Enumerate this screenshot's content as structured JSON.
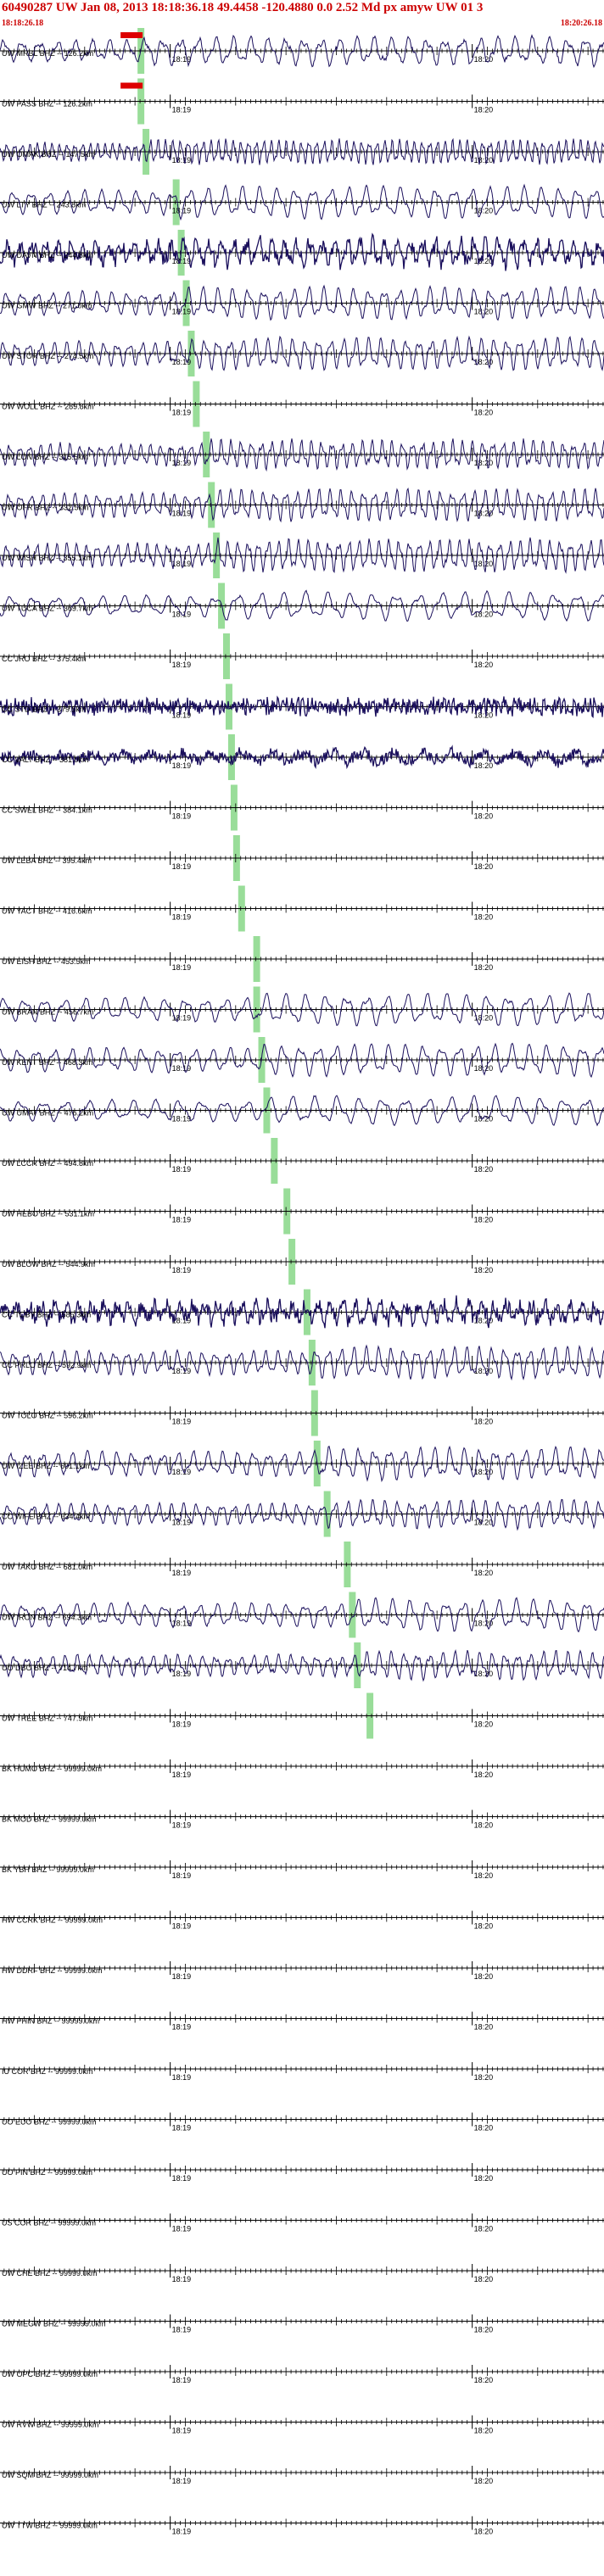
{
  "header": {
    "title": "60490287 UW Jan 08, 2013 18:18:36.18   49.4458 -120.4880  0.0 2.52 Md px amyw UW 01   3",
    "start_time": "18:18:26.18",
    "end_time": "18:20:26.18"
  },
  "colors": {
    "trace": "#1a0f5c",
    "pick": "#99dd99",
    "header_text": "#cc0000",
    "axis": "#000000"
  },
  "chart_data": {
    "type": "line",
    "title": "60490287 UW Jan 08, 2013 18:18:36.18   49.4458 -120.4880  0.0 2.52 Md px amyw UW 01   3",
    "time_window": [
      "18:18:26.18",
      "18:20:26.18"
    ],
    "tick_labels": [
      "18:19",
      "18:20"
    ],
    "tick_seconds": [
      33.82,
      93.82
    ],
    "window_seconds": 120,
    "origin_seconds": 10,
    "traces": [
      {
        "label": "UW MRBL BHZ -- 126.2km",
        "distance_km": 126.2,
        "pick_s": 28.0,
        "amp": 0.8,
        "period": 3.5,
        "noise": 0.1,
        "has_signal": true,
        "clipped": true
      },
      {
        "label": "UW PASS BHZ -- 126.2km",
        "distance_km": 126.2,
        "pick_s": 28.0,
        "amp": 0.15,
        "period": 3.0,
        "noise": 0.05,
        "has_signal": false,
        "clipped": true
      },
      {
        "label": "UW OMAK BHZ -- 147.5km",
        "distance_km": 147.5,
        "pick_s": 29.0,
        "amp": 0.7,
        "period": 1.5,
        "noise": 0.05,
        "has_signal": true,
        "clipped": false
      },
      {
        "label": "UW LTY BHZ -- 243.8km",
        "distance_km": 243.8,
        "pick_s": 35.0,
        "amp": 0.9,
        "period": 3.5,
        "noise": 0.05,
        "has_signal": true,
        "clipped": false
      },
      {
        "label": "UW DAVN BHZ -- 244.8km",
        "distance_km": 244.8,
        "pick_s": 36.0,
        "amp": 0.7,
        "period": 2.5,
        "noise": 0.35,
        "has_signal": true,
        "clipped": false
      },
      {
        "label": "UW GMW BHZ -- 271.0km",
        "distance_km": 271.0,
        "pick_s": 37.0,
        "amp": 0.9,
        "period": 3.0,
        "noise": 0.05,
        "has_signal": true,
        "clipped": false
      },
      {
        "label": "UW STOR BHZ -- 274.5km",
        "distance_km": 274.5,
        "pick_s": 38.0,
        "amp": 0.9,
        "period": 2.5,
        "noise": 0.05,
        "has_signal": true,
        "clipped": false
      },
      {
        "label": "UW WOLL BHZ -- 289.8km",
        "distance_km": 289.8,
        "pick_s": 39.0,
        "amp": 0.0,
        "period": 3.0,
        "noise": 0.0,
        "has_signal": false,
        "clipped": false
      },
      {
        "label": "UW LON BHZ -- 315.5km",
        "distance_km": 315.5,
        "pick_s": 41.0,
        "amp": 0.8,
        "period": 2.0,
        "noise": 0.1,
        "has_signal": true,
        "clipped": false
      },
      {
        "label": "UW OFR BHZ -- 332.5km",
        "distance_km": 332.5,
        "pick_s": 42.0,
        "amp": 0.9,
        "period": 2.2,
        "noise": 0.05,
        "has_signal": true,
        "clipped": false
      },
      {
        "label": "UW WISH BHZ -- 355.1km",
        "distance_km": 355.1,
        "pick_s": 43.0,
        "amp": 0.9,
        "period": 2.0,
        "noise": 0.08,
        "has_signal": true,
        "clipped": false
      },
      {
        "label": "UW TUCA BHZ -- 369.7km",
        "distance_km": 369.7,
        "pick_s": 44.0,
        "amp": 0.8,
        "period": 4.5,
        "noise": 0.05,
        "has_signal": true,
        "clipped": false
      },
      {
        "label": "CC JRO BHZ -- 375.4km",
        "distance_km": 375.4,
        "pick_s": 45.0,
        "amp": 0.0,
        "period": 3.0,
        "noise": 0.0,
        "has_signal": false,
        "clipped": false
      },
      {
        "label": "CC STD BHZ -- 379.5km",
        "distance_km": 379.5,
        "pick_s": 45.5,
        "amp": 0.15,
        "period": 1.0,
        "noise": 0.45,
        "has_signal": true,
        "clipped": false
      },
      {
        "label": "CC VALT BHZ -- 381.0km",
        "distance_km": 381.0,
        "pick_s": 46.0,
        "amp": 0.3,
        "period": 6.0,
        "noise": 0.3,
        "has_signal": true,
        "clipped": false
      },
      {
        "label": "CC SWEL BHZ -- 384.1km",
        "distance_km": 384.1,
        "pick_s": 46.5,
        "amp": 0.0,
        "period": 3.0,
        "noise": 0.0,
        "has_signal": false,
        "clipped": false
      },
      {
        "label": "UW LEBA BHZ -- 395.4km",
        "distance_km": 395.4,
        "pick_s": 47.0,
        "amp": 0.0,
        "period": 3.0,
        "noise": 0.0,
        "has_signal": false,
        "clipped": false
      },
      {
        "label": "UW YACT BHZ -- 416.6km",
        "distance_km": 416.6,
        "pick_s": 48.0,
        "amp": 0.0,
        "period": 3.0,
        "noise": 0.0,
        "has_signal": false,
        "clipped": false
      },
      {
        "label": "UW EISH BHZ -- 453.5km",
        "distance_km": 453.5,
        "pick_s": 51.0,
        "amp": 0.0,
        "period": 3.0,
        "noise": 0.0,
        "has_signal": false,
        "clipped": false
      },
      {
        "label": "UW BRAN BHZ -- 456.7km",
        "distance_km": 456.7,
        "pick_s": 51.0,
        "amp": 0.9,
        "period": 4.0,
        "noise": 0.05,
        "has_signal": true,
        "clipped": false
      },
      {
        "label": "UW KENT BHZ -- 468.3km",
        "distance_km": 468.3,
        "pick_s": 52.0,
        "amp": 0.9,
        "period": 3.5,
        "noise": 0.05,
        "has_signal": true,
        "clipped": false
      },
      {
        "label": "UW UMAT BHZ -- 476.2km",
        "distance_km": 476.2,
        "pick_s": 53.0,
        "amp": 0.8,
        "period": 4.5,
        "noise": 0.05,
        "has_signal": true,
        "clipped": false
      },
      {
        "label": "UW LCCR BHZ -- 494.8km",
        "distance_km": 494.8,
        "pick_s": 54.5,
        "amp": 0.0,
        "period": 3.0,
        "noise": 0.0,
        "has_signal": false,
        "clipped": false
      },
      {
        "label": "UW HEBO BHZ -- 531.1km",
        "distance_km": 531.1,
        "pick_s": 57.0,
        "amp": 0.0,
        "period": 3.0,
        "noise": 0.0,
        "has_signal": false,
        "clipped": false
      },
      {
        "label": "UW BLOW BHZ -- 544.9km",
        "distance_km": 544.9,
        "pick_s": 58.0,
        "amp": 0.0,
        "period": 3.0,
        "noise": 0.0,
        "has_signal": false,
        "clipped": false
      },
      {
        "label": "CC TCBY BHZ -- 585.3km",
        "distance_km": 585.3,
        "pick_s": 61.0,
        "amp": 0.6,
        "period": 2.5,
        "noise": 0.4,
        "has_signal": true,
        "clipped": false
      },
      {
        "label": "CC PRLC BHZ -- 592.9km",
        "distance_km": 592.9,
        "pick_s": 62.0,
        "amp": 0.9,
        "period": 2.5,
        "noise": 0.05,
        "has_signal": true,
        "clipped": false
      },
      {
        "label": "UW TOLO BHZ -- 596.2km",
        "distance_km": 596.2,
        "pick_s": 62.5,
        "amp": 0.0,
        "period": 3.0,
        "noise": 0.0,
        "has_signal": false,
        "clipped": false
      },
      {
        "label": "UW IZEE BHZ -- 601.1km",
        "distance_km": 601.1,
        "pick_s": 63.0,
        "amp": 0.9,
        "period": 3.0,
        "noise": 0.08,
        "has_signal": true,
        "clipped": false
      },
      {
        "label": "CC WIFE BHZ -- 634.4km",
        "distance_km": 634.4,
        "pick_s": 65.0,
        "amp": 0.8,
        "period": 2.5,
        "noise": 0.05,
        "has_signal": true,
        "clipped": false
      },
      {
        "label": "UW TAKO BHZ -- 681.0km",
        "distance_km": 681.0,
        "pick_s": 69.0,
        "amp": 0.0,
        "period": 3.0,
        "noise": 0.0,
        "has_signal": false,
        "clipped": false
      },
      {
        "label": "UW IRON BHZ -- 694.3km",
        "distance_km": 694.3,
        "pick_s": 70.0,
        "amp": 0.9,
        "period": 3.5,
        "noise": 0.05,
        "has_signal": true,
        "clipped": false
      },
      {
        "label": "UO DBO BHZ -- 714.7km",
        "distance_km": 714.7,
        "pick_s": 71.0,
        "amp": 0.8,
        "period": 2.5,
        "noise": 0.08,
        "has_signal": true,
        "clipped": false
      },
      {
        "label": "UW TREE BHZ -- 747.9km",
        "distance_km": 747.9,
        "pick_s": 73.5,
        "amp": 0.0,
        "period": 3.0,
        "noise": 0.0,
        "has_signal": false,
        "clipped": false
      },
      {
        "label": "BK HUMO BHZ -- 99999.0km",
        "distance_km": 99999.0,
        "pick_s": null,
        "amp": 0.0,
        "period": 3.0,
        "noise": 0.0,
        "has_signal": false,
        "clipped": false
      },
      {
        "label": "BK MOD BHZ -- 99999.0km",
        "distance_km": 99999.0,
        "pick_s": null,
        "amp": 0.0,
        "period": 3.0,
        "noise": 0.0,
        "has_signal": false,
        "clipped": false
      },
      {
        "label": "BK YBH BHZ -- 99999.0km",
        "distance_km": 99999.0,
        "pick_s": null,
        "amp": 0.0,
        "period": 3.0,
        "noise": 0.0,
        "has_signal": false,
        "clipped": false
      },
      {
        "label": "HW CCRK BHZ -- 99999.0km",
        "distance_km": 99999.0,
        "pick_s": null,
        "amp": 0.0,
        "period": 3.0,
        "noise": 0.0,
        "has_signal": false,
        "clipped": false
      },
      {
        "label": "HW DDRF BHZ -- 99999.0km",
        "distance_km": 99999.0,
        "pick_s": null,
        "amp": 0.0,
        "period": 3.0,
        "noise": 0.0,
        "has_signal": false,
        "clipped": false
      },
      {
        "label": "HW PHIN BHZ -- 99999.0km",
        "distance_km": 99999.0,
        "pick_s": null,
        "amp": 0.0,
        "period": 3.0,
        "noise": 0.0,
        "has_signal": false,
        "clipped": false
      },
      {
        "label": "IU COR BHZ -- 99999.0km",
        "distance_km": 99999.0,
        "pick_s": null,
        "amp": 0.0,
        "period": 3.0,
        "noise": 0.0,
        "has_signal": false,
        "clipped": false
      },
      {
        "label": "UO EUO BHZ -- 99999.0km",
        "distance_km": 99999.0,
        "pick_s": null,
        "amp": 0.0,
        "period": 3.0,
        "noise": 0.0,
        "has_signal": false,
        "clipped": false
      },
      {
        "label": "UO PIN BHZ -- 99999.0km",
        "distance_km": 99999.0,
        "pick_s": null,
        "amp": 0.0,
        "period": 3.0,
        "noise": 0.0,
        "has_signal": false,
        "clipped": false
      },
      {
        "label": "US COR BHZ -- 99999.0km",
        "distance_km": 99999.0,
        "pick_s": null,
        "amp": 0.0,
        "period": 3.0,
        "noise": 0.0,
        "has_signal": false,
        "clipped": false
      },
      {
        "label": "UW CHE BHZ -- 99999.0km",
        "distance_km": 99999.0,
        "pick_s": null,
        "amp": 0.0,
        "period": 3.0,
        "noise": 0.0,
        "has_signal": false,
        "clipped": false
      },
      {
        "label": "UW MEGW BHZ -- 99999.0km",
        "distance_km": 99999.0,
        "pick_s": null,
        "amp": 0.0,
        "period": 3.0,
        "noise": 0.0,
        "has_signal": false,
        "clipped": false
      },
      {
        "label": "UW OPC BHZ -- 99999.0km",
        "distance_km": 99999.0,
        "pick_s": null,
        "amp": 0.0,
        "period": 3.0,
        "noise": 0.0,
        "has_signal": false,
        "clipped": false
      },
      {
        "label": "UW RVW BHZ -- 99999.0km",
        "distance_km": 99999.0,
        "pick_s": null,
        "amp": 0.0,
        "period": 3.0,
        "noise": 0.0,
        "has_signal": false,
        "clipped": false
      },
      {
        "label": "UW SQM BHZ -- 99999.0km",
        "distance_km": 99999.0,
        "pick_s": null,
        "amp": 0.0,
        "period": 3.0,
        "noise": 0.0,
        "has_signal": false,
        "clipped": false
      },
      {
        "label": "UW TTW BHZ -- 99999.0km",
        "distance_km": 99999.0,
        "pick_s": null,
        "amp": 0.0,
        "period": 3.0,
        "noise": 0.0,
        "has_signal": false,
        "clipped": false
      }
    ]
  }
}
